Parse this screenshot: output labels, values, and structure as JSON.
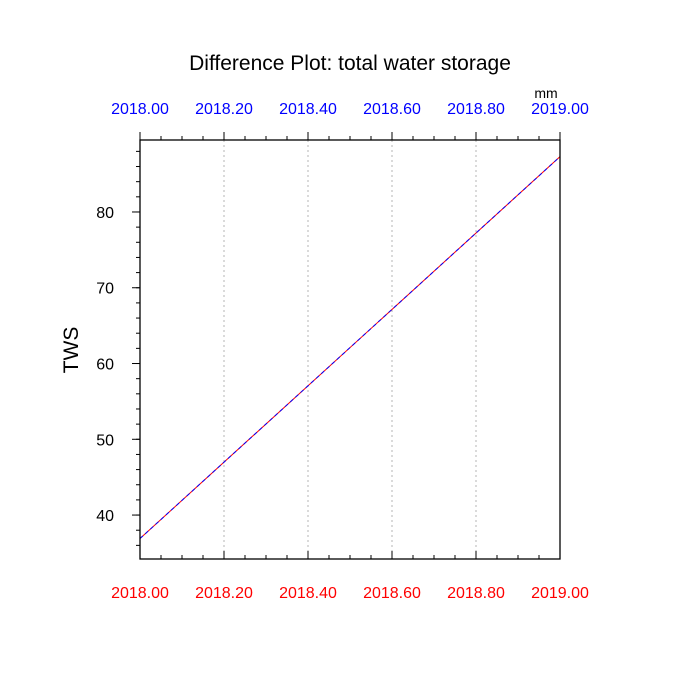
{
  "chart_data": {
    "type": "line",
    "title": "Difference Plot: total water storage",
    "units_label": "mm",
    "ylabel": "TWS",
    "xlabel": "",
    "xlim": [
      2018.0,
      2019.0
    ],
    "ylim": [
      34.2,
      89.5
    ],
    "x_ticks_bottom": [
      "2018.00",
      "2018.20",
      "2018.40",
      "2018.60",
      "2018.80",
      "2019.00"
    ],
    "x_ticks_top": [
      "2018.00",
      "2018.20",
      "2018.40",
      "2018.60",
      "2018.80",
      "2019.00"
    ],
    "y_ticks": [
      40,
      50,
      60,
      70,
      80
    ],
    "x_grid": "dotted vertical lines at major ticks",
    "series": [
      {
        "x": [
          2018.0,
          2019.0
        ],
        "values": [
          36.9,
          87.3
        ],
        "color": "#ff0000",
        "style": "solid"
      },
      {
        "x": [
          2018.0,
          2019.0
        ],
        "values": [
          36.9,
          87.3
        ],
        "color": "#0000ff",
        "style": "dashed"
      }
    ],
    "colors": {
      "bottom_axis_labels": "#ff0000",
      "top_axis_labels": "#0000ff",
      "frame": "#000000",
      "grid": "#b4b4b4"
    }
  }
}
